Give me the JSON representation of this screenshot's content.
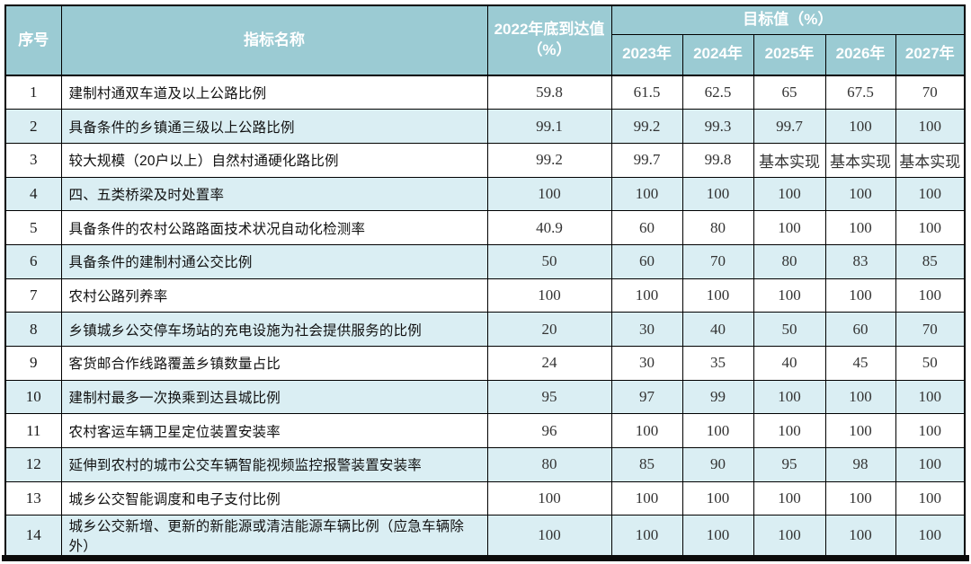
{
  "colors": {
    "header_bg": "#9BCBD3",
    "stripe_bg": "#DAEEF3",
    "border": "#000000",
    "header_text": "#ffffff",
    "value_text": "#333333"
  },
  "table": {
    "header": {
      "col_no": "序号",
      "col_name": "指标名称",
      "col_reach": "2022年底到达值（%）",
      "col_target_group": "目标值（%）",
      "years": [
        "2023年",
        "2024年",
        "2025年",
        "2026年",
        "2027年"
      ]
    },
    "rows": [
      {
        "no": "1",
        "name": "建制村通双车道及以上公路比例",
        "reach": "59.8",
        "targets": [
          "61.5",
          "62.5",
          "65",
          "67.5",
          "70"
        ]
      },
      {
        "no": "2",
        "name": "具备条件的乡镇通三级以上公路比例",
        "reach": "99.1",
        "targets": [
          "99.2",
          "99.3",
          "99.7",
          "100",
          "100"
        ]
      },
      {
        "no": "3",
        "name": "较大规模（20户以上）自然村通硬化路比例",
        "reach": "99.2",
        "targets": [
          "99.7",
          "99.8",
          "基本实现",
          "基本实现",
          "基本实现"
        ]
      },
      {
        "no": "4",
        "name": "四、五类桥梁及时处置率",
        "reach": "100",
        "targets": [
          "100",
          "100",
          "100",
          "100",
          "100"
        ]
      },
      {
        "no": "5",
        "name": "具备条件的农村公路路面技术状况自动化检测率",
        "reach": "40.9",
        "targets": [
          "60",
          "80",
          "100",
          "100",
          "100"
        ]
      },
      {
        "no": "6",
        "name": "具备条件的建制村通公交比例",
        "reach": "50",
        "targets": [
          "60",
          "70",
          "80",
          "83",
          "85"
        ]
      },
      {
        "no": "7",
        "name": "农村公路列养率",
        "reach": "100",
        "targets": [
          "100",
          "100",
          "100",
          "100",
          "100"
        ]
      },
      {
        "no": "8",
        "name": "乡镇城乡公交停车场站的充电设施为社会提供服务的比例",
        "reach": "20",
        "targets": [
          "30",
          "40",
          "50",
          "60",
          "70"
        ]
      },
      {
        "no": "9",
        "name": "客货邮合作线路覆盖乡镇数量占比",
        "reach": "24",
        "targets": [
          "30",
          "35",
          "40",
          "45",
          "50"
        ]
      },
      {
        "no": "10",
        "name": "建制村最多一次换乘到达县城比例",
        "reach": "95",
        "targets": [
          "97",
          "99",
          "100",
          "100",
          "100"
        ]
      },
      {
        "no": "11",
        "name": "农村客运车辆卫星定位装置安装率",
        "reach": "96",
        "targets": [
          "100",
          "100",
          "100",
          "100",
          "100"
        ]
      },
      {
        "no": "12",
        "name": "延伸到农村的城市公交车辆智能视频监控报警装置安装率",
        "reach": "80",
        "targets": [
          "85",
          "90",
          "95",
          "98",
          "100"
        ]
      },
      {
        "no": "13",
        "name": "城乡公交智能调度和电子支付比例",
        "reach": "100",
        "targets": [
          "100",
          "100",
          "100",
          "100",
          "100"
        ]
      },
      {
        "no": "14",
        "name": "城乡公交新增、更新的新能源或清洁能源车辆比例（应急车辆除外）",
        "reach": "100",
        "targets": [
          "100",
          "100",
          "100",
          "100",
          "100"
        ]
      }
    ]
  }
}
